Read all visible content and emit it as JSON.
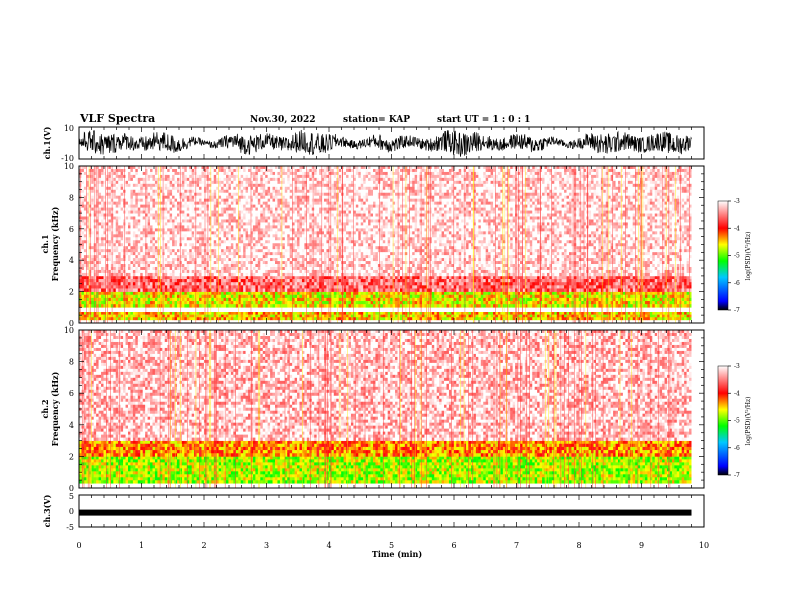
{
  "header": {
    "title": "VLF Spectra",
    "date": "Nov.30, 2022",
    "station": "station= KAP",
    "start": "start  UT =   1 : 0  : 1"
  },
  "colors": {
    "colorbar": [
      "#000000",
      "#0000ff",
      "#00c8ff",
      "#00ff00",
      "#ffff00",
      "#ff0000",
      "#ffffff"
    ],
    "spectrogram_background": "#ffffff",
    "spectrogram_signal": "#ff2020"
  },
  "chart_data": [
    {
      "type": "line",
      "ylabel": "ch.1(V)",
      "ylim": [
        -10,
        10
      ],
      "yticks": [
        "10",
        "-10"
      ],
      "description_series": "ch.1 waveform oscillating between about -8 and 8 V"
    },
    {
      "type": "heatmap",
      "ylabel": "ch.1\nFrequency  (kHz)",
      "ylabel_lines": [
        "ch.1",
        "Frequency  (kHz)"
      ],
      "ylim": [
        0,
        10
      ],
      "yticks": [
        "0",
        "2",
        "4",
        "6",
        "8",
        "10"
      ],
      "colorbar_label": "log(PSD)(V²/Hz)",
      "colorbar_ticks": [
        "-3",
        "-4",
        "-5",
        "-6",
        "-7"
      ],
      "colorbar_range": [
        -7,
        -3
      ],
      "bands": [
        {
          "from_khz": 0.2,
          "to_khz": 0.7,
          "level": -4.5
        },
        {
          "from_khz": 1.0,
          "to_khz": 2.0,
          "level": -4.6
        },
        {
          "from_khz": 2.0,
          "to_khz": 3.0,
          "level": -3.6
        },
        {
          "from_khz": 3.0,
          "to_khz": 10.0,
          "level": -3.1
        }
      ]
    },
    {
      "type": "heatmap",
      "ylabel_lines": [
        "ch.2",
        "Frequency  (kHz)"
      ],
      "ylim": [
        0,
        10
      ],
      "yticks": [
        "0",
        "2",
        "4",
        "6",
        "8",
        "10"
      ],
      "colorbar_label": "log(PSD)(V²/Hz)",
      "colorbar_ticks": [
        "-3",
        "-4",
        "-5",
        "-6",
        "-7"
      ],
      "colorbar_range": [
        -7,
        -3
      ],
      "bands": [
        {
          "from_khz": 0.3,
          "to_khz": 2.0,
          "level": -4.8
        },
        {
          "from_khz": 2.0,
          "to_khz": 3.0,
          "level": -4.3
        },
        {
          "from_khz": 3.0,
          "to_khz": 10.0,
          "level": -3.2
        }
      ]
    },
    {
      "type": "line",
      "ylabel": "ch.3(V)",
      "ylim": [
        -5,
        5
      ],
      "yticks": [
        "5",
        "0",
        "-5"
      ],
      "level_v": -0.5
    }
  ],
  "x_axis": {
    "label": "Time  (min)",
    "range": [
      0,
      10
    ],
    "ticks": [
      "0",
      "1",
      "2",
      "3",
      "4",
      "5",
      "6",
      "7",
      "8",
      "9",
      "10"
    ],
    "data_end_min": 9.8
  }
}
